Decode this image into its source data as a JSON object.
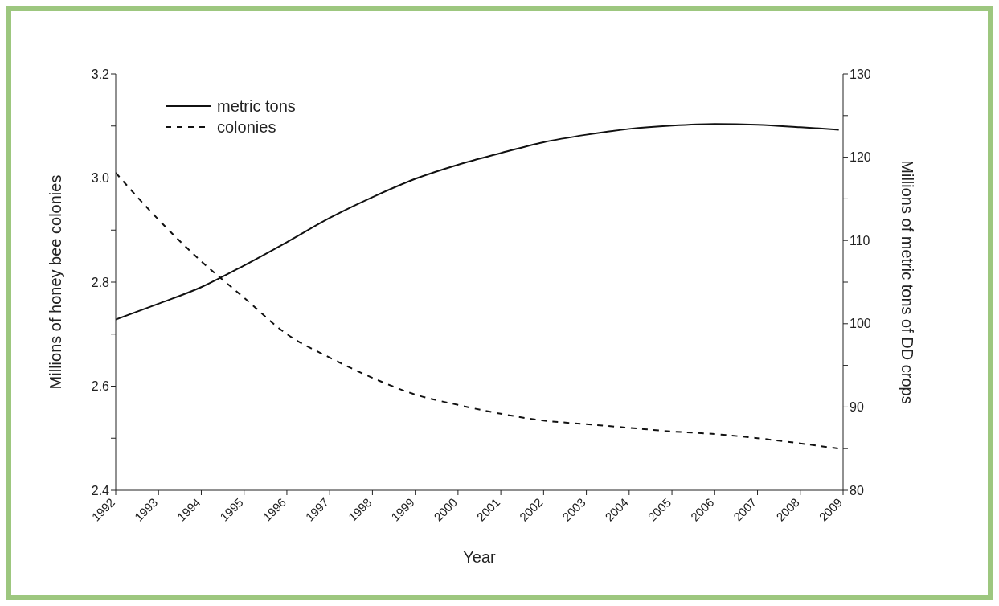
{
  "chart_data": {
    "type": "line",
    "xlabel": "Year",
    "ylabel": "Millions of honey bee colonies",
    "y2label": "Millions of metric tons of DD crops",
    "series": [
      {
        "name": "metric tons",
        "color": "#111111",
        "axis": "y2",
        "line_style": "solid",
        "x": [
          1992,
          1993,
          1994,
          1995,
          1996,
          1997,
          1998,
          1999,
          2000,
          2001,
          2002,
          2003,
          2004,
          2005,
          2006,
          2007,
          2008,
          2008.9
        ],
        "values": [
          100.5,
          102.4,
          104.4,
          107,
          109.8,
          112.7,
          115.2,
          117.4,
          119.1,
          120.5,
          121.8,
          122.7,
          123.4,
          123.8,
          124,
          123.9,
          123.6,
          123.3
        ]
      },
      {
        "name": "colonies",
        "color": "#111111",
        "axis": "y",
        "line_style": "dashed",
        "x": [
          1992,
          1993,
          1994,
          1995,
          1996,
          1997,
          1998,
          1999,
          2000,
          2001,
          2002,
          2003,
          2004,
          2005,
          2006,
          2007,
          2008,
          2008.9
        ],
        "values": [
          3.01,
          2.92,
          2.84,
          2.77,
          2.7,
          2.655,
          2.616,
          2.584,
          2.564,
          2.547,
          2.534,
          2.527,
          2.52,
          2.513,
          2.508,
          2.5,
          2.49,
          2.48
        ]
      }
    ],
    "xlim": [
      1992,
      2009
    ],
    "xticks": [
      1992,
      1993,
      1994,
      1995,
      1996,
      1997,
      1998,
      1999,
      2000,
      2001,
      2002,
      2003,
      2004,
      2005,
      2006,
      2007,
      2008,
      2009
    ],
    "ylim": [
      2.4,
      3.2
    ],
    "yticks": [
      {
        "value": 2.4,
        "label": "2.4"
      },
      {
        "value": 2.5,
        "label": null
      },
      {
        "value": 2.6,
        "label": "2.6"
      },
      {
        "value": 2.7,
        "label": null
      },
      {
        "value": 2.8,
        "label": "2.8"
      },
      {
        "value": 2.9,
        "label": null
      },
      {
        "value": 3.0,
        "label": "3.0"
      },
      {
        "value": 3.1,
        "label": null
      },
      {
        "value": 3.2,
        "label": "3.2"
      }
    ],
    "y2lim": [
      80,
      130
    ],
    "y2ticks": [
      80,
      {
        "value": 85,
        "label": null
      },
      90,
      {
        "value": 95,
        "label": null
      },
      100,
      {
        "value": 105,
        "label": null
      },
      110,
      {
        "value": 115,
        "label": null
      },
      120,
      {
        "value": 125,
        "label": null
      },
      130
    ],
    "grid": false,
    "legend": "top left",
    "marker": "none"
  }
}
